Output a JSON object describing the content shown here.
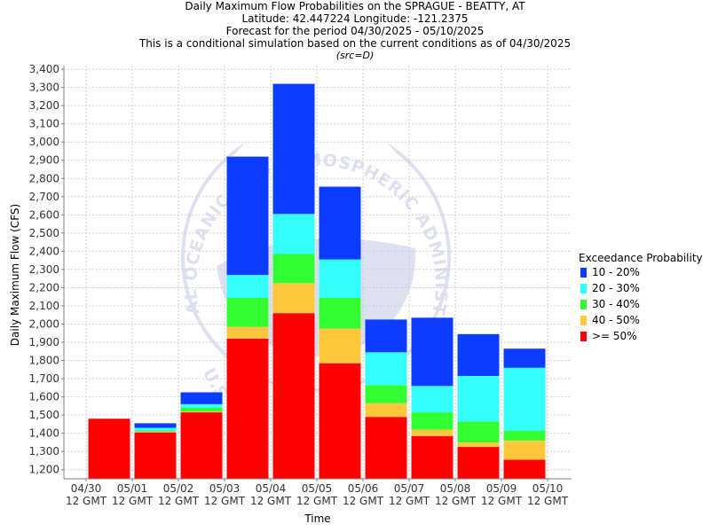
{
  "title": {
    "line1": "Daily Maximum Flow Probabilities on the SPRAGUE - BEATTY, AT",
    "line2": "Latitude: 42.447224 Longitude: -121.2375",
    "line3": "Forecast for the period 04/30/2025 - 05/10/2025",
    "line4": "This is a conditional simulation based on the current conditions as of 04/30/2025",
    "line5": "(src=D)"
  },
  "watermark": {
    "text": "NATIONAL OCEANIC AND ATMOSPHERIC ADMINISTRATION",
    "text_bottom": "U.S.",
    "icon": "noaa-logo-icon"
  },
  "chart_data": {
    "type": "bar",
    "stacked": true,
    "xlabel": "Time",
    "ylabel": "Daily Maximum Flow (CFS)",
    "ylim": [
      1150,
      3420
    ],
    "yticks": [
      1200,
      1300,
      1400,
      1500,
      1600,
      1700,
      1800,
      1900,
      2000,
      2100,
      2200,
      2300,
      2400,
      2500,
      2600,
      2700,
      2800,
      2900,
      3000,
      3100,
      3200,
      3300,
      3400
    ],
    "grid": true,
    "xtick_labels": [
      {
        "date": "04/30",
        "sub": "12 GMT"
      },
      {
        "date": "05/01",
        "sub": "12 GMT"
      },
      {
        "date": "05/02",
        "sub": "12 GMT"
      },
      {
        "date": "05/03",
        "sub": "12 GMT"
      },
      {
        "date": "05/04",
        "sub": "12 GMT"
      },
      {
        "date": "05/05",
        "sub": "12 GMT"
      },
      {
        "date": "05/06",
        "sub": "12 GMT"
      },
      {
        "date": "05/07",
        "sub": "12 GMT"
      },
      {
        "date": "05/08",
        "sub": "12 GMT"
      },
      {
        "date": "05/09",
        "sub": "12 GMT"
      },
      {
        "date": "05/10",
        "sub": "12 GMT"
      }
    ],
    "bars": [
      {
        "date": "04/30-05/01",
        "bounds": [
          1480,
          1480,
          1480,
          1480,
          1480
        ]
      },
      {
        "date": "05/01-05/02",
        "bounds": [
          1405,
          1410,
          1415,
          1430,
          1455
        ]
      },
      {
        "date": "05/02-05/03",
        "bounds": [
          1515,
          1520,
          1540,
          1560,
          1625
        ]
      },
      {
        "date": "05/03-05/04",
        "bounds": [
          1920,
          1985,
          2145,
          2270,
          2920
        ]
      },
      {
        "date": "05/04-05/05",
        "bounds": [
          2060,
          2225,
          2385,
          2605,
          3320
        ]
      },
      {
        "date": "05/05-05/06",
        "bounds": [
          1785,
          1975,
          2145,
          2355,
          2755
        ]
      },
      {
        "date": "05/06-05/07",
        "bounds": [
          1490,
          1565,
          1665,
          1845,
          2025
        ]
      },
      {
        "date": "05/07-05/08",
        "bounds": [
          1385,
          1420,
          1515,
          1660,
          2035
        ]
      },
      {
        "date": "05/08-05/09",
        "bounds": [
          1325,
          1350,
          1465,
          1715,
          1945
        ]
      },
      {
        "date": "05/09-05/10",
        "bounds": [
          1255,
          1360,
          1415,
          1760,
          1865
        ]
      }
    ],
    "series": [
      {
        "name": ">= 50%",
        "color": "#ff0000"
      },
      {
        "name": "40 - 50%",
        "color": "#ffc83c"
      },
      {
        "name": "30 - 40%",
        "color": "#33ff33"
      },
      {
        "name": "20 - 30%",
        "color": "#33ffff"
      },
      {
        "name": "10 - 20%",
        "color": "#0c3cff"
      }
    ],
    "legend": {
      "title": "Exceedance Probability",
      "placement": "right",
      "items": [
        {
          "label": "10 - 20%",
          "color": "#0c3cff"
        },
        {
          "label": "20 - 30%",
          "color": "#33ffff"
        },
        {
          "label": "30 - 40%",
          "color": "#33ff33"
        },
        {
          "label": "40 - 50%",
          "color": "#ffc83c"
        },
        {
          "label": ">= 50%",
          "color": "#ff0000"
        }
      ]
    }
  }
}
